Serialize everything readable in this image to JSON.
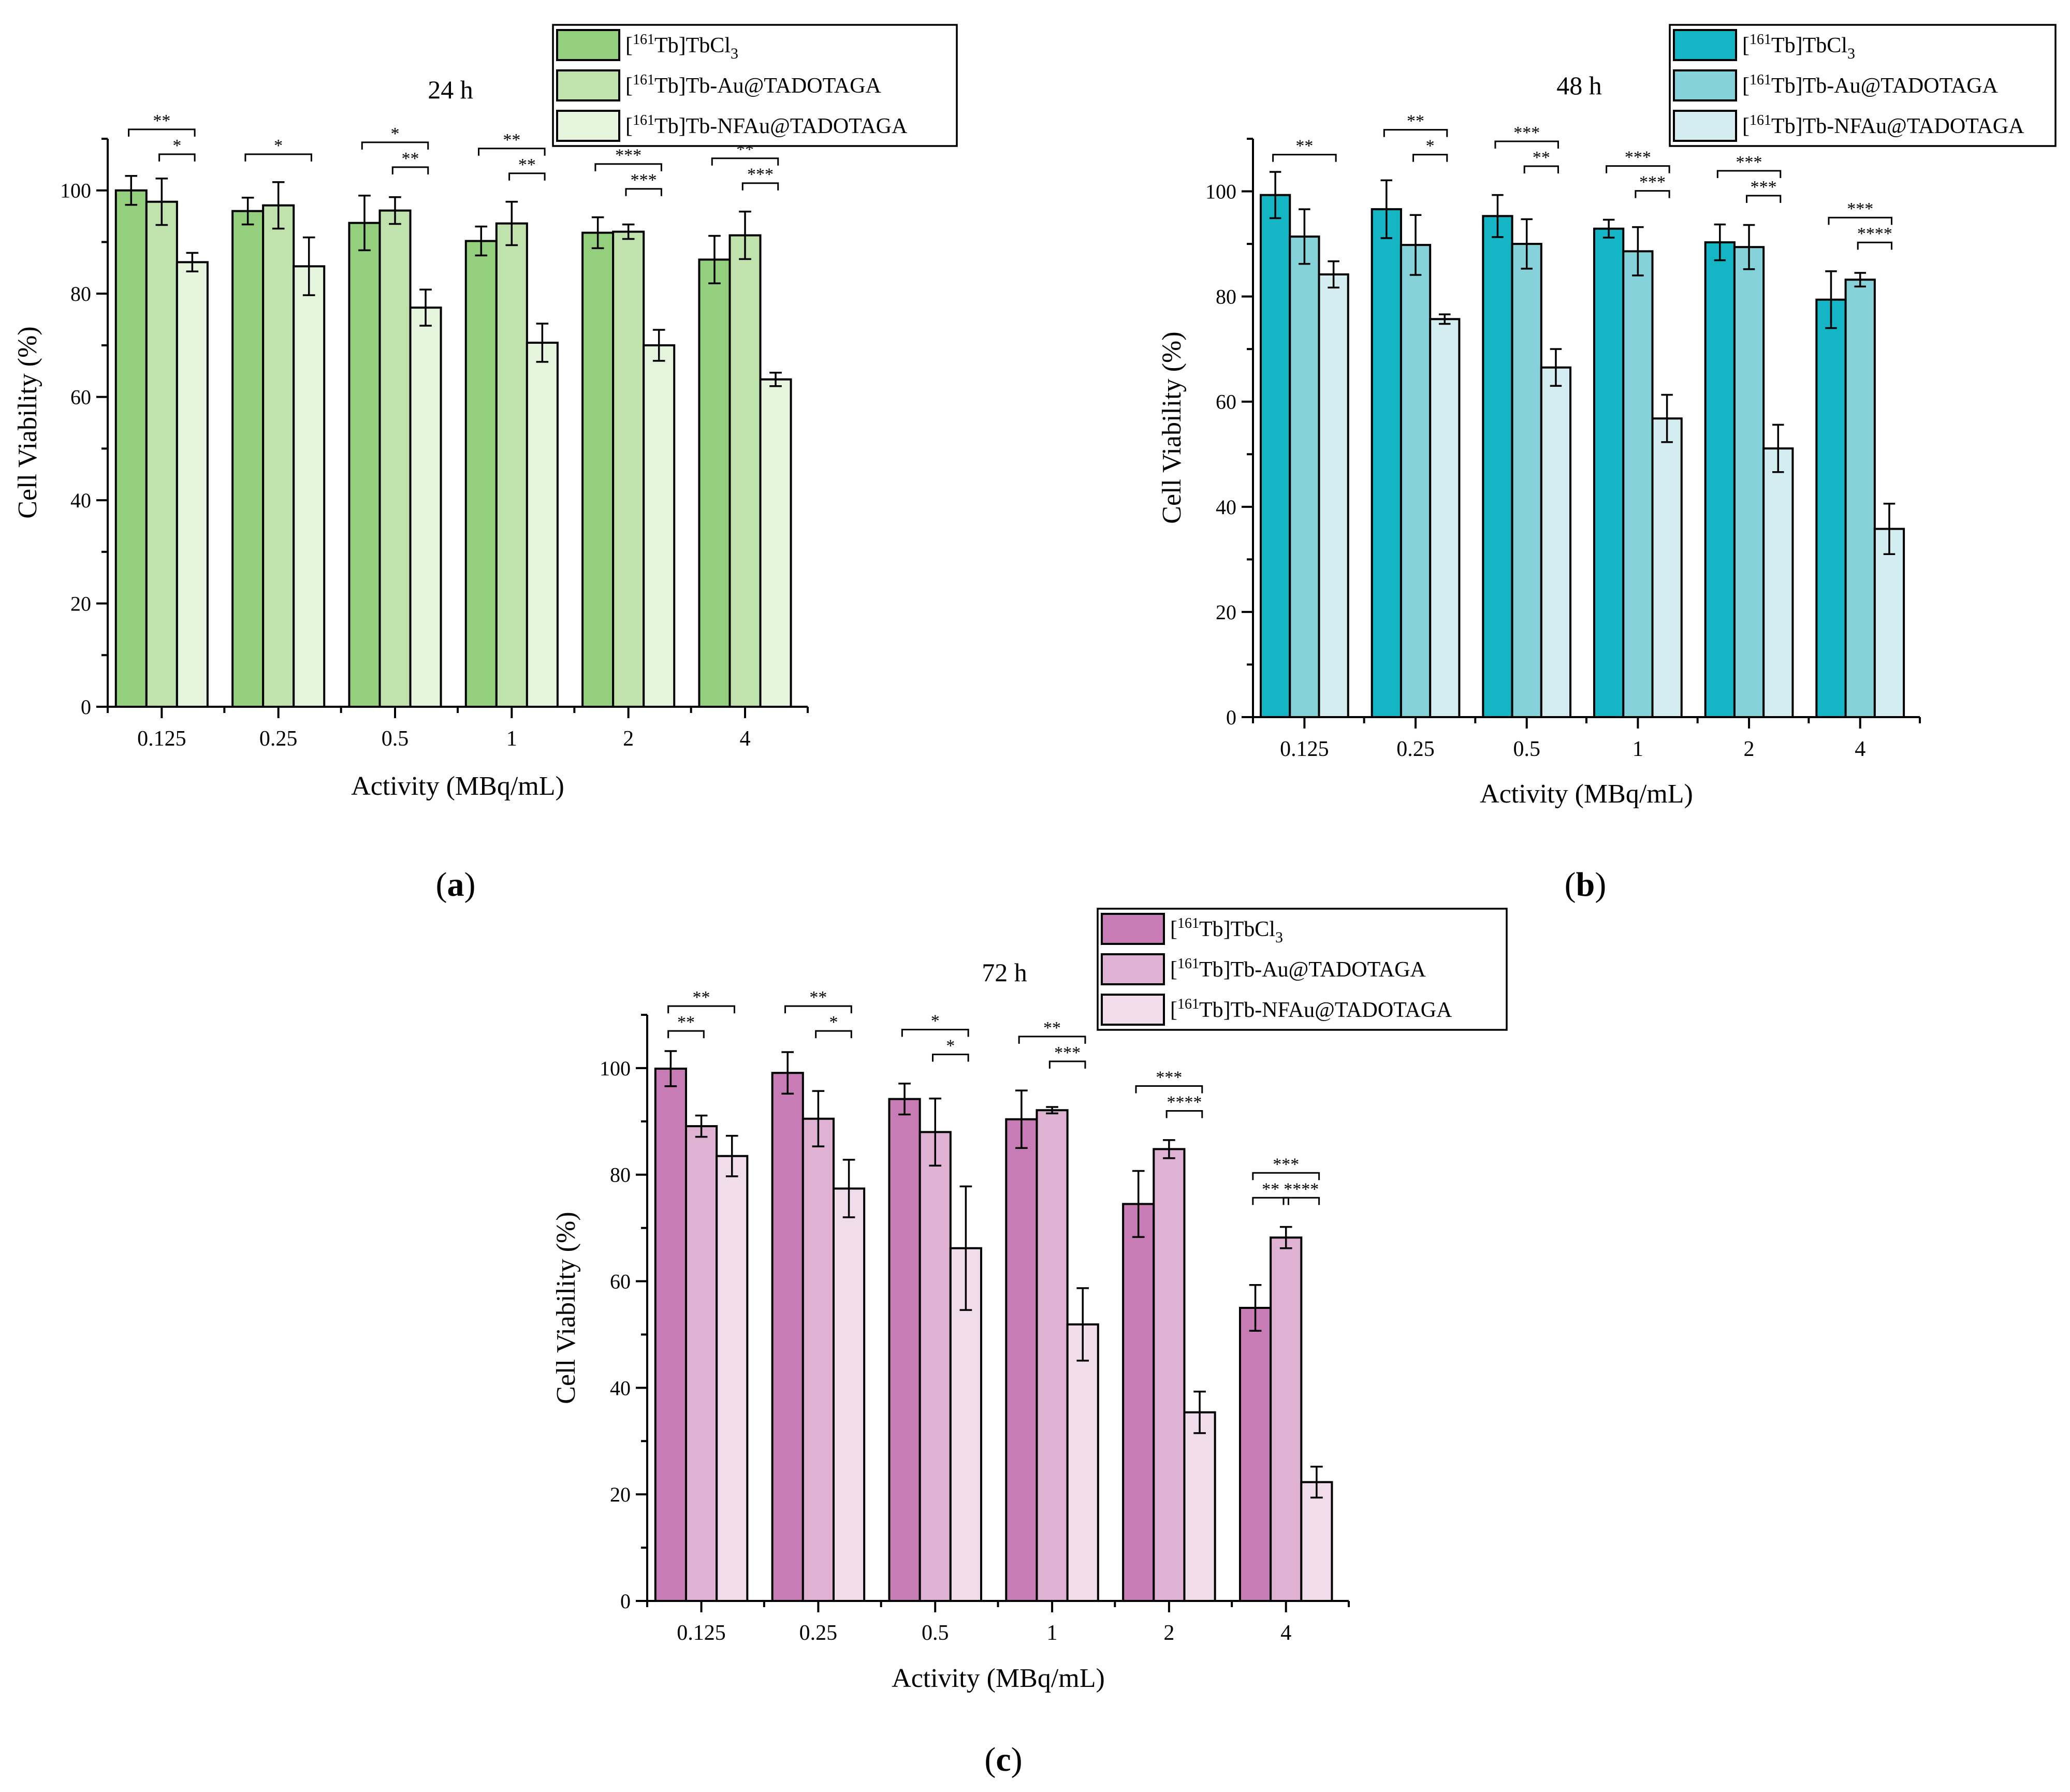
{
  "chart_data": [
    {
      "type": "bar",
      "panel": "(a)",
      "panel_letter": "a",
      "title": "24 h",
      "xlabel": "Activity (MBq/mL)",
      "ylabel": "Cell Viability (%)",
      "ylim": [
        0,
        110
      ],
      "yticks": [
        0,
        20,
        40,
        60,
        80,
        100
      ],
      "categories": [
        "0.125",
        "0.25",
        "0.5",
        "1",
        "2",
        "4"
      ],
      "legend_position": "top-right",
      "colors": [
        "#93cf7c",
        "#c0e2ad",
        "#e5f4dc"
      ],
      "series": [
        {
          "name": "[161Tb]TbCl3",
          "legend": {
            "pre": "[",
            "sup": "161",
            "main": "Tb]TbCl",
            "sub": "3"
          },
          "values": [
            100,
            96,
            93.7,
            90.2,
            91.8,
            86.6
          ],
          "errors": [
            2.8,
            2.6,
            5.3,
            2.8,
            3.0,
            4.6
          ]
        },
        {
          "name": "[161Tb]Tb-Au@TADOTAGA",
          "legend": {
            "pre": "[",
            "sup": "161",
            "main": "Tb]Tb-Au@TADOTAGA",
            "sub": ""
          },
          "values": [
            97.8,
            97.1,
            96.1,
            93.6,
            92.0,
            91.3
          ],
          "errors": [
            4.5,
            4.5,
            2.6,
            4.2,
            1.4,
            4.6
          ]
        },
        {
          "name": "[161Tb]Tb-NFAu@TADOTAGA",
          "legend": {
            "pre": "[",
            "sup": "161",
            "main": "Tb]Tb-NFAu@TADOTAGA",
            "sub": ""
          },
          "values": [
            86.1,
            85.3,
            77.3,
            70.5,
            70.0,
            63.4
          ],
          "errors": [
            1.8,
            5.6,
            3.5,
            3.7,
            3.0,
            1.3
          ]
        }
      ],
      "significance": [
        {
          "category": 0,
          "from": 0,
          "to": 2,
          "label": "**",
          "level": 2
        },
        {
          "category": 0,
          "from": 1,
          "to": 2,
          "label": "*",
          "level": 1
        },
        {
          "category": 1,
          "from": 0,
          "to": 2,
          "label": "*",
          "level": 1
        },
        {
          "category": 2,
          "from": 0,
          "to": 2,
          "label": "*",
          "level": 2
        },
        {
          "category": 2,
          "from": 1,
          "to": 2,
          "label": "**",
          "level": 1
        },
        {
          "category": 3,
          "from": 0,
          "to": 2,
          "label": "**",
          "level": 2
        },
        {
          "category": 3,
          "from": 1,
          "to": 2,
          "label": "**",
          "level": 1
        },
        {
          "category": 4,
          "from": 0,
          "to": 2,
          "label": "***",
          "level": 2
        },
        {
          "category": 4,
          "from": 1,
          "to": 2,
          "label": "***",
          "level": 1
        },
        {
          "category": 5,
          "from": 0,
          "to": 2,
          "label": "**",
          "level": 2
        },
        {
          "category": 5,
          "from": 1,
          "to": 2,
          "label": "***",
          "level": 1
        }
      ]
    },
    {
      "type": "bar",
      "panel": "(b)",
      "panel_letter": "b",
      "title": "48 h",
      "xlabel": "Activity (MBq/mL)",
      "ylabel": "Cell Viability (%)",
      "ylim": [
        0,
        110
      ],
      "yticks": [
        0,
        20,
        40,
        60,
        80,
        100
      ],
      "categories": [
        "0.125",
        "0.25",
        "0.5",
        "1",
        "2",
        "4"
      ],
      "legend_position": "top-right",
      "colors": [
        "#14b5c4",
        "#85d2da",
        "#d3edf1"
      ],
      "series": [
        {
          "name": "[161Tb]TbCl3",
          "legend": {
            "pre": "[",
            "sup": "161",
            "main": "Tb]TbCl",
            "sub": "3"
          },
          "values": [
            99.3,
            96.6,
            95.3,
            92.9,
            90.3,
            79.4
          ],
          "errors": [
            4.4,
            5.5,
            4.0,
            1.7,
            3.4,
            5.4
          ]
        },
        {
          "name": "[161Tb]Tb-Au@TADOTAGA",
          "legend": {
            "pre": "[",
            "sup": "161",
            "main": "Tb]Tb-Au@TADOTAGA",
            "sub": ""
          },
          "values": [
            91.4,
            89.8,
            90.0,
            88.6,
            89.4,
            83.2
          ],
          "errors": [
            5.2,
            5.7,
            4.7,
            4.6,
            4.2,
            1.3
          ]
        },
        {
          "name": "[161Tb]Tb-NFAu@TADOTAGA",
          "legend": {
            "pre": "[",
            "sup": "161",
            "main": "Tb]Tb-NFAu@TADOTAGA",
            "sub": ""
          },
          "values": [
            84.2,
            75.7,
            66.5,
            56.8,
            51.1,
            35.8
          ],
          "errors": [
            2.5,
            0.9,
            3.5,
            4.5,
            4.5,
            4.8
          ]
        }
      ],
      "significance": [
        {
          "category": 0,
          "from": 0,
          "to": 2,
          "label": "**",
          "level": 1
        },
        {
          "category": 1,
          "from": 0,
          "to": 2,
          "label": "**",
          "level": 2
        },
        {
          "category": 1,
          "from": 1,
          "to": 2,
          "label": "*",
          "level": 1
        },
        {
          "category": 2,
          "from": 0,
          "to": 2,
          "label": "***",
          "level": 2
        },
        {
          "category": 2,
          "from": 1,
          "to": 2,
          "label": "**",
          "level": 1
        },
        {
          "category": 3,
          "from": 0,
          "to": 2,
          "label": "***",
          "level": 2
        },
        {
          "category": 3,
          "from": 1,
          "to": 2,
          "label": "***",
          "level": 1
        },
        {
          "category": 4,
          "from": 0,
          "to": 2,
          "label": "***",
          "level": 2
        },
        {
          "category": 4,
          "from": 1,
          "to": 2,
          "label": "***",
          "level": 1
        },
        {
          "category": 5,
          "from": 0,
          "to": 2,
          "label": "***",
          "level": 2
        },
        {
          "category": 5,
          "from": 1,
          "to": 2,
          "label": "****",
          "level": 1
        }
      ]
    },
    {
      "type": "bar",
      "panel": "(c)",
      "panel_letter": "c",
      "title": "72 h",
      "xlabel": "Activity (MBq/mL)",
      "ylabel": "Cell Viability (%)",
      "ylim": [
        0,
        110
      ],
      "yticks": [
        0,
        20,
        40,
        60,
        80,
        100
      ],
      "categories": [
        "0.125",
        "0.25",
        "0.5",
        "1",
        "2",
        "4"
      ],
      "legend_position": "top-right",
      "colors": [
        "#c87cb6",
        "#dfb1d2",
        "#f1dceb"
      ],
      "series": [
        {
          "name": "[161Tb]TbCl3",
          "legend": {
            "pre": "[",
            "sup": "161",
            "main": "Tb]TbCl",
            "sub": "3"
          },
          "values": [
            99.9,
            99.1,
            94.2,
            90.4,
            74.5,
            55.0
          ],
          "errors": [
            3.3,
            3.9,
            2.9,
            5.4,
            6.2,
            4.3
          ]
        },
        {
          "name": "[161Tb]Tb-Au@TADOTAGA",
          "legend": {
            "pre": "[",
            "sup": "161",
            "main": "Tb]Tb-Au@TADOTAGA",
            "sub": ""
          },
          "values": [
            89.1,
            90.5,
            88.0,
            92.1,
            84.8,
            68.2
          ],
          "errors": [
            2.0,
            5.2,
            6.3,
            0.6,
            1.7,
            2.0
          ]
        },
        {
          "name": "[161Tb]Tb-NFAu@TADOTAGA",
          "legend": {
            "pre": "[",
            "sup": "161",
            "main": "Tb]Tb-NFAu@TADOTAGA",
            "sub": ""
          },
          "values": [
            83.5,
            77.4,
            66.2,
            51.9,
            35.4,
            22.3
          ],
          "errors": [
            3.8,
            5.4,
            11.6,
            6.8,
            3.9,
            2.9
          ]
        }
      ],
      "significance": [
        {
          "category": 0,
          "from": 0,
          "to": 1,
          "label": "**",
          "level": 1
        },
        {
          "category": 0,
          "from": 0,
          "to": 2,
          "label": "**",
          "level": 2
        },
        {
          "category": 1,
          "from": 0,
          "to": 2,
          "label": "**",
          "level": 2
        },
        {
          "category": 1,
          "from": 1,
          "to": 2,
          "label": "*",
          "level": 1
        },
        {
          "category": 2,
          "from": 0,
          "to": 2,
          "label": "*",
          "level": 2
        },
        {
          "category": 2,
          "from": 1,
          "to": 2,
          "label": "*",
          "level": 1
        },
        {
          "category": 3,
          "from": 0,
          "to": 2,
          "label": "**",
          "level": 2
        },
        {
          "category": 3,
          "from": 1,
          "to": 2,
          "label": "***",
          "level": 1
        },
        {
          "category": 4,
          "from": 0,
          "to": 2,
          "label": "***",
          "level": 2
        },
        {
          "category": 4,
          "from": 1,
          "to": 2,
          "label": "****",
          "level": 1
        },
        {
          "category": 5,
          "from": 0,
          "to": 1,
          "label": "**",
          "level": 1
        },
        {
          "category": 5,
          "from": 1,
          "to": 2,
          "label": "****",
          "level": 1
        },
        {
          "category": 5,
          "from": 0,
          "to": 2,
          "label": "***",
          "level": 2
        }
      ]
    }
  ]
}
